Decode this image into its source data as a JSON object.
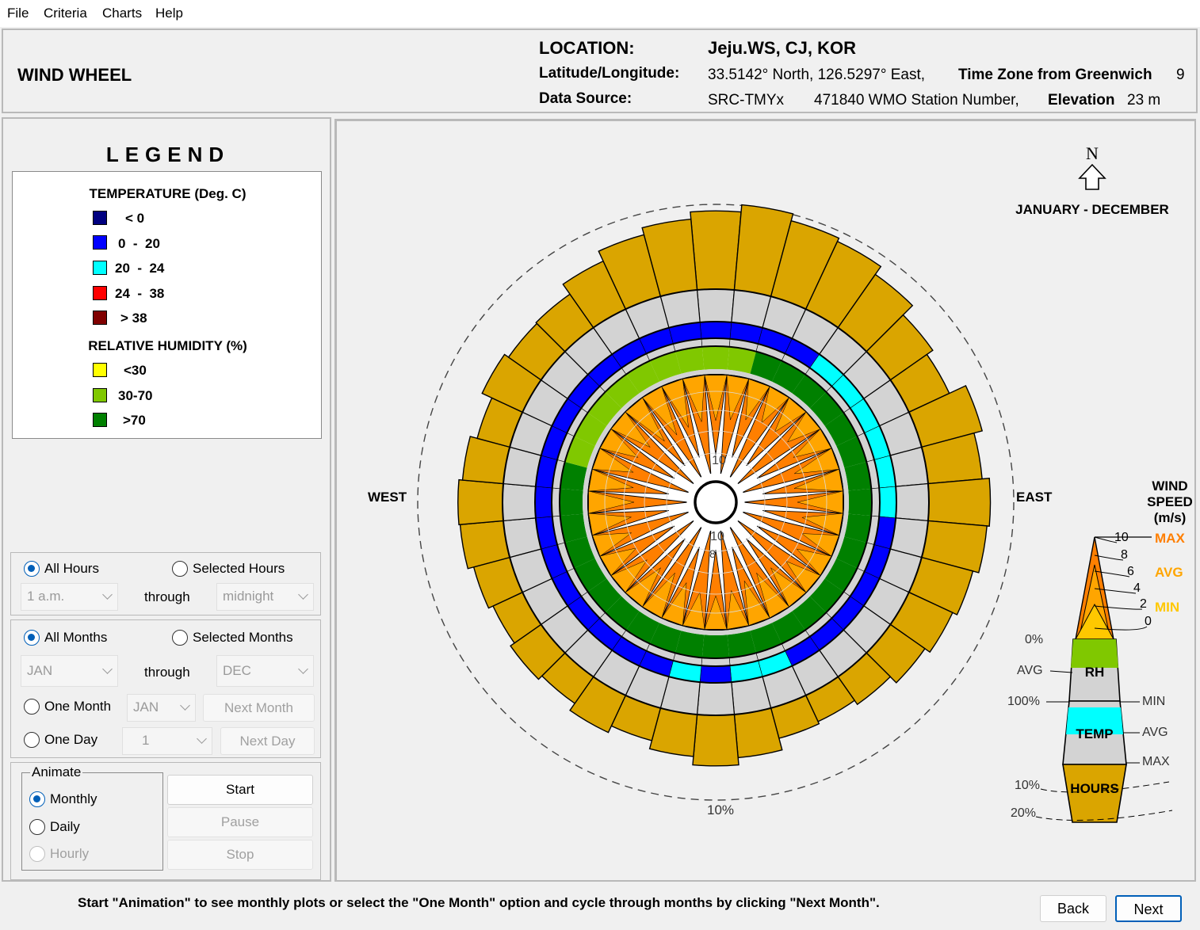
{
  "menu": {
    "items": [
      "File",
      "Criteria",
      "Charts",
      "Help"
    ]
  },
  "header": {
    "title": "WIND WHEEL",
    "location_label": "LOCATION:",
    "location_value": "Jeju.WS, CJ, KOR",
    "latlon_label": "Latitude/Longitude:",
    "latlon_value": "33.5142° North, 126.5297° East,",
    "tz_label": "Time Zone from Greenwich",
    "tz_value": "9",
    "source_label": "Data Source:",
    "source_value": "SRC-TMYx",
    "wmo_value": "471840 WMO Station Number,",
    "elev_label": "Elevation",
    "elev_value": "23 m"
  },
  "legend": {
    "title": "LEGEND",
    "temp_header": "TEMPERATURE (Deg. C)",
    "temp_items": [
      {
        "label": "< 0",
        "color": "#000080"
      },
      {
        "label": "0  -  20",
        "color": "#0000ff"
      },
      {
        "label": "20  -  24",
        "color": "#00ffff"
      },
      {
        "label": "24  -  38",
        "color": "#ff0000"
      },
      {
        "label": "> 38",
        "color": "#800000"
      }
    ],
    "rh_header": "RELATIVE HUMIDITY (%)",
    "rh_items": [
      {
        "label": "<30",
        "color": "#ffff00"
      },
      {
        "label": "30-70",
        "color": "#80c800"
      },
      {
        "label": ">70",
        "color": "#008000"
      }
    ]
  },
  "hours": {
    "all_label": "All Hours",
    "selected_label": "Selected Hours",
    "from": "1 a.m.",
    "through": "through",
    "to": "midnight"
  },
  "months": {
    "all_label": "All Months",
    "selected_label": "Selected Months",
    "from": "JAN",
    "through": "through",
    "to": "DEC",
    "one_month_label": "One Month",
    "one_month_value": "JAN",
    "next_month_label": "Next Month",
    "one_day_label": "One Day",
    "one_day_value": "1",
    "next_day_label": "Next Day"
  },
  "animate": {
    "group_label": "Animate",
    "monthly": "Monthly",
    "daily": "Daily",
    "hourly": "Hourly",
    "start": "Start",
    "pause": "Pause",
    "stop": "Stop"
  },
  "chart": {
    "period": "JANUARY - DECEMBER",
    "north_label": "N",
    "west_label": "WEST",
    "east_label": "EAST",
    "ring_pct_label": "10%",
    "inner_top_label": "10",
    "inner_bottom_label": "10",
    "inner_bottom_label2": "8"
  },
  "key": {
    "title_lines": [
      "WIND",
      "SPEED",
      "(m/s)"
    ],
    "max_label": "MAX",
    "avg_label": "AVG",
    "min_label": "MIN",
    "speed_ticks": [
      "10",
      "8",
      "6",
      "4",
      "2",
      "0"
    ],
    "rh_label": "RH",
    "rh_pct0": "0%",
    "rh_avg": "AVG",
    "rh_pct100": "100%",
    "temp_label": "TEMP",
    "temp_min": "MIN",
    "temp_avg": "AVG",
    "temp_max": "MAX",
    "hours_label": "HOURS",
    "hours_10": "10%",
    "hours_20": "20%"
  },
  "chart_data": {
    "type": "wind-wheel",
    "directions": 36,
    "hours_pct": [
      13.0,
      14.2,
      13.0,
      12.4,
      10.8,
      8.6,
      7.4,
      10.4,
      9.0,
      10.2,
      9.8,
      8.8,
      8.0,
      7.0,
      5.6,
      4.8,
      5.2,
      7.2,
      8.4,
      7.0,
      5.6,
      6.8,
      5.4,
      6.2,
      5.4,
      6.2,
      7.2,
      7.4,
      6.8,
      5.6,
      7.4,
      6.6,
      6.8,
      8.8,
      10.6,
      11.8
    ],
    "max_speed": [
      8,
      10,
      8,
      10,
      8,
      10,
      8,
      10,
      8,
      10,
      8,
      10,
      8,
      10,
      8,
      10,
      8,
      10,
      8,
      10,
      8,
      10,
      8,
      10,
      8,
      10,
      8,
      10,
      8,
      10,
      8,
      10,
      8,
      10,
      8,
      10
    ],
    "avg_speed": [
      4.6,
      4.4,
      4.0,
      3.6,
      3.6,
      3.4,
      3.8,
      4.4,
      4.8,
      4.6,
      4.0,
      3.6,
      3.4,
      3.6,
      4.2,
      4.6,
      4.4,
      3.8,
      3.4,
      3.6,
      4.2,
      4.6,
      4.2,
      3.8,
      3.6,
      3.8,
      4.2,
      4.6,
      4.4,
      4.0,
      3.8,
      4.2,
      4.8,
      5.0,
      4.8,
      4.6
    ],
    "rh_class": [
      "30-70",
      "30-70",
      ">70",
      ">70",
      ">70",
      ">70",
      ">70",
      ">70",
      ">70",
      ">70",
      ">70",
      ">70",
      ">70",
      ">70",
      ">70",
      ">70",
      ">70",
      ">70",
      ">70",
      ">70",
      ">70",
      ">70",
      ">70",
      ">70",
      ">70",
      ">70",
      ">70",
      ">70",
      ">70",
      "30-70",
      "30-70",
      "30-70",
      "30-70",
      "30-70",
      "30-70",
      "30-70"
    ],
    "temp_class": [
      "0-20",
      "0-20",
      "0-20",
      "0-20",
      "20-24",
      "20-24",
      "20-24",
      "20-24",
      "20-24",
      "20-24",
      "0-20",
      "0-20",
      "0-20",
      "0-20",
      "0-20",
      "0-20",
      "20-24",
      "20-24",
      "0-20",
      "20-24",
      "0-20",
      "0-20",
      "0-20",
      "0-20",
      "0-20",
      "0-20",
      "0-20",
      "0-20",
      "0-20",
      "0-20",
      "0-20",
      "0-20",
      "0-20",
      "0-20",
      "0-20",
      "0-20"
    ],
    "colors": {
      "hours": "#daa500",
      "wind_max": "#ff7f00",
      "wind_avg": "#ffa500",
      "wind_min": "#ffc800",
      "temp_0_20": "#0000ff",
      "temp_20_24": "#00ffff",
      "rh_30_70": "#80c800",
      "rh_70": "#008000",
      "ring_grey": "#d3d3d3"
    }
  },
  "footer": {
    "message": "Start \"Animation\" to see monthly plots or select the \"One Month\" option and cycle through months by clicking \"Next Month\".",
    "back": "Back",
    "next": "Next"
  }
}
